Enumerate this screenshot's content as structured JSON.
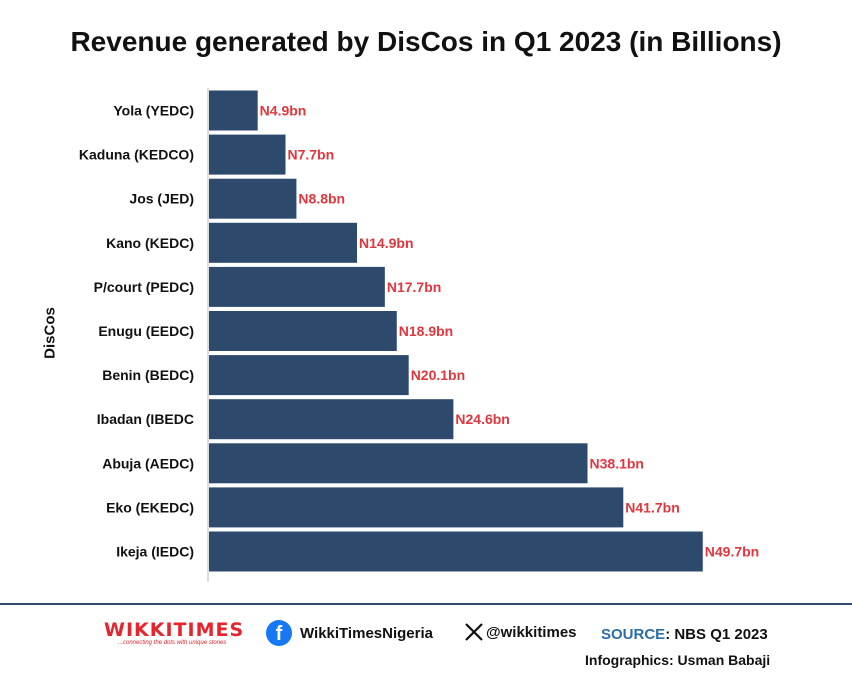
{
  "chart_data": {
    "type": "bar",
    "orientation": "horizontal",
    "title": "Revenue generated by DisCos in Q1 2023 (in Billions)",
    "ylabel": "DisCos",
    "xlabel": "",
    "categories": [
      "Yola (YEDC)",
      "Kaduna (KEDCO)",
      "Jos (JED)",
      "Kano (KEDC)",
      "P/court (PEDC)",
      "Enugu (EEDC)",
      "Benin (BEDC)",
      "Ibadan (IBEDC",
      "Abuja (AEDC)",
      "Eko (EKEDC)",
      "Ikeja (IEDC)"
    ],
    "values": [
      4.9,
      7.7,
      8.8,
      14.9,
      17.7,
      18.9,
      20.1,
      24.6,
      38.1,
      41.7,
      49.7
    ],
    "data_labels": [
      "N4.9bn",
      "N7.7bn",
      "N8.8bn",
      "N14.9bn",
      "N17.7bn",
      "N18.9bn",
      "N20.1bn",
      "N24.6bn",
      "N38.1bn",
      "N41.7bn",
      "N49.7bn"
    ],
    "xlim": [
      0,
      50
    ],
    "grid": false,
    "legend": "none",
    "colors": {
      "bar": "#2d4a6c",
      "label": "#e2363d",
      "axis": "#bbbbbb"
    }
  },
  "footer": {
    "logo_text": "WIKKITIMES",
    "logo_tagline": "...connecting the dots with unique stories",
    "facebook_handle": "WikkiTimesNigeria",
    "x_handle": "@wikkitimes",
    "source_label": "SOURCE",
    "source_value": ": NBS Q1 2023",
    "credit": "Infographics: Usman Babaji",
    "icons": [
      "facebook-icon",
      "x-icon"
    ],
    "accent_color": "#2f4a6b"
  }
}
